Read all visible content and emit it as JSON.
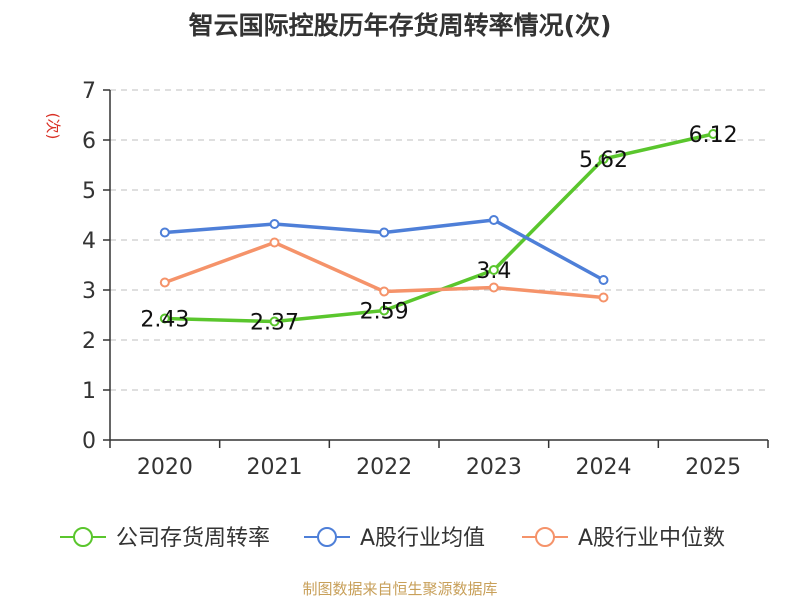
{
  "footer": {
    "source": "制图数据来自恒生聚源数据库"
  },
  "chart_data": {
    "type": "line",
    "title": "智云国际控股历年存货周转率情况(次)",
    "ylabel": "(次)",
    "xlabel": "",
    "categories": [
      "2020",
      "2021",
      "2022",
      "2023",
      "2024",
      "2025"
    ],
    "ylim": [
      0,
      7
    ],
    "yticks": [
      0,
      1,
      2,
      3,
      4,
      5,
      6,
      7
    ],
    "grid": true,
    "legend_position": "bottom",
    "series": [
      {
        "name": "公司存货周转率",
        "color": "#5ac62d",
        "values": [
          2.43,
          2.37,
          2.59,
          3.4,
          5.62,
          6.12
        ],
        "labels": [
          "2.43",
          "2.37",
          "2.59",
          "3.4",
          "5.62",
          "6.12"
        ]
      },
      {
        "name": "A股行业均值",
        "color": "#4e7fd8",
        "values": [
          4.15,
          4.32,
          4.15,
          4.4,
          3.2,
          null
        ]
      },
      {
        "name": "A股行业中位数",
        "color": "#f5936a",
        "values": [
          3.15,
          3.95,
          2.97,
          3.05,
          2.85,
          null
        ]
      }
    ]
  }
}
